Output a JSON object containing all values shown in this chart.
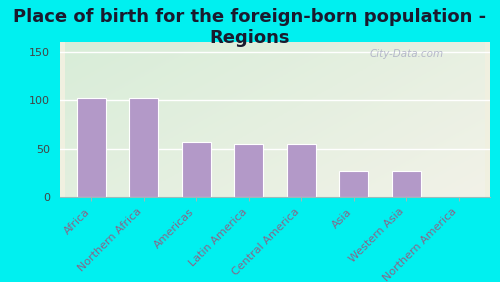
{
  "title": "Place of birth for the foreign-born population -\nRegions",
  "categories": [
    "Africa",
    "Northern Africa",
    "Americas",
    "Latin America",
    "Central America",
    "Asia",
    "Western Asia",
    "Northern America"
  ],
  "values": [
    103,
    103,
    57,
    55,
    55,
    27,
    27,
    0
  ],
  "bar_color": "#b399c8",
  "bar_edge_color": "#ffffff",
  "ylim": [
    0,
    160
  ],
  "yticks": [
    0,
    50,
    100,
    150
  ],
  "outer_bg": "#00f0f0",
  "plot_bg_left": "#d8edd8",
  "plot_bg_right": "#f0f0e0",
  "title_fontsize": 13,
  "title_color": "#1a1a2e",
  "tick_fontsize": 8,
  "xlabel_color": "#886688",
  "ylabel_color": "#444444",
  "watermark": "City-Data.com"
}
